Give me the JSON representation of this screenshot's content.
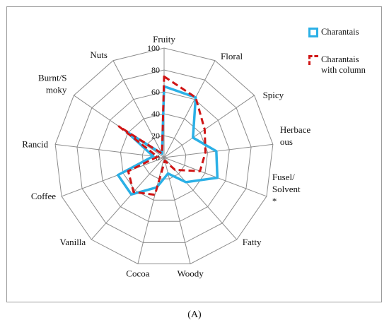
{
  "chart_data": {
    "type": "radar",
    "title": "",
    "axes": [
      "Fruity",
      "Floral",
      "Spicy",
      "Herbace\nous",
      "Fusel/\nSolvent\n*",
      "Fatty",
      "Woody",
      "Cocoa",
      "Vanilla",
      "Coffee",
      "Rancid",
      "Burnt/S\nmoky",
      "Nuts"
    ],
    "ticks": [
      0,
      20,
      40,
      60,
      80,
      100
    ],
    "rlim": [
      0,
      100
    ],
    "grid": true,
    "legend_position": "top-right",
    "series": [
      {
        "name": "Charantais",
        "color": "#2bb0e6",
        "style": "solid",
        "values": [
          65,
          62,
          32,
          48,
          52,
          30,
          15,
          28,
          45,
          45,
          10,
          42,
          4
        ]
      },
      {
        "name": "Charantais\nwith column",
        "color": "#d01515",
        "style": "dashed",
        "values": [
          74,
          62,
          45,
          38,
          35,
          15,
          3,
          35,
          42,
          35,
          6,
          50,
          4
        ]
      }
    ]
  },
  "caption": "(A)"
}
